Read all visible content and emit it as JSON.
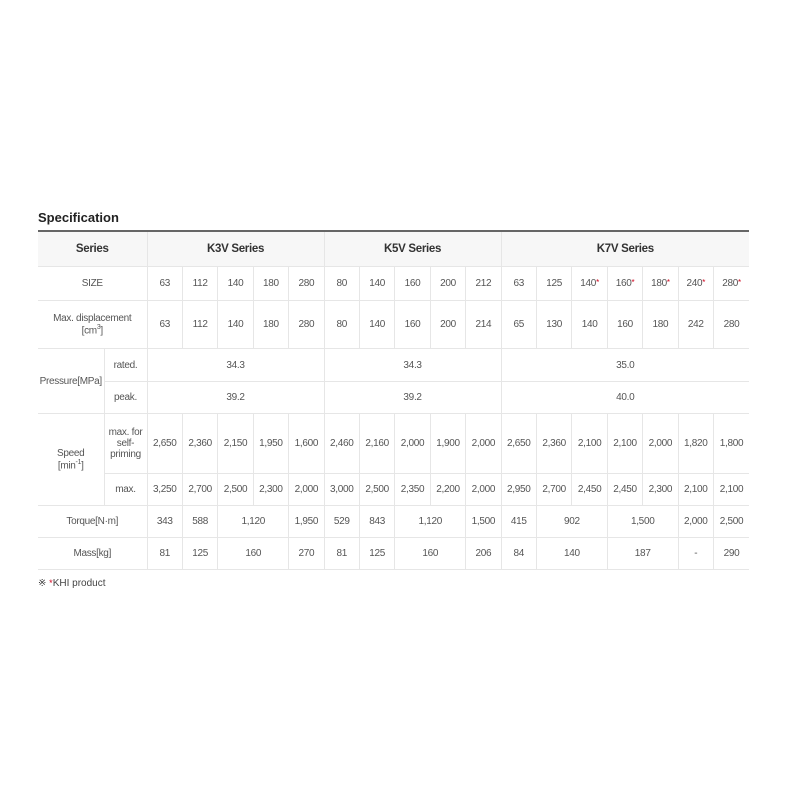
{
  "title": "Specification",
  "header": {
    "label": "Series",
    "groups": [
      {
        "label": "K3V Series",
        "span": 5
      },
      {
        "label": "K5V Series",
        "span": 5
      },
      {
        "label": "K7V Series",
        "span": 7
      }
    ]
  },
  "rows": [
    {
      "label": "SIZE",
      "height": 34,
      "cells": [
        {
          "v": "63"
        },
        {
          "v": "112"
        },
        {
          "v": "140"
        },
        {
          "v": "180"
        },
        {
          "v": "280"
        },
        {
          "v": "80"
        },
        {
          "v": "140"
        },
        {
          "v": "160"
        },
        {
          "v": "200"
        },
        {
          "v": "212"
        },
        {
          "v": "63"
        },
        {
          "v": "125"
        },
        {
          "v": "140",
          "star": true
        },
        {
          "v": "160",
          "star": true
        },
        {
          "v": "180",
          "star": true
        },
        {
          "v": "240",
          "star": true
        },
        {
          "v": "280",
          "star": true
        }
      ]
    },
    {
      "label": "Max. displacement",
      "label2": "[cm",
      "sup": "3",
      "label3": "]",
      "height": 48,
      "cells": [
        {
          "v": "63"
        },
        {
          "v": "112"
        },
        {
          "v": "140"
        },
        {
          "v": "180"
        },
        {
          "v": "280"
        },
        {
          "v": "80"
        },
        {
          "v": "140"
        },
        {
          "v": "160"
        },
        {
          "v": "200"
        },
        {
          "v": "214"
        },
        {
          "v": "65"
        },
        {
          "v": "130"
        },
        {
          "v": "140"
        },
        {
          "v": "160"
        },
        {
          "v": "180"
        },
        {
          "v": "242"
        },
        {
          "v": "280"
        }
      ]
    },
    {
      "group": "Pressure[MPa]",
      "groupRows": 2,
      "sub": "rated.",
      "height": 33,
      "cells": [
        {
          "v": "34.3",
          "span": 5
        },
        {
          "v": "34.3",
          "span": 5
        },
        {
          "v": "35.0",
          "span": 7
        }
      ]
    },
    {
      "sub": "peak.",
      "height": 32,
      "cells": [
        {
          "v": "39.2",
          "span": 5
        },
        {
          "v": "39.2",
          "span": 5
        },
        {
          "v": "40.0",
          "span": 7
        }
      ]
    },
    {
      "group": "Speed",
      "group2": "[min",
      "groupSup": "-1",
      "group3": "]",
      "groupRows": 2,
      "sub": "max. for self-priming",
      "height": 60,
      "cells": [
        {
          "v": "2,650"
        },
        {
          "v": "2,360"
        },
        {
          "v": "2,150"
        },
        {
          "v": "1,950"
        },
        {
          "v": "1,600"
        },
        {
          "v": "2,460"
        },
        {
          "v": "2,160"
        },
        {
          "v": "2,000"
        },
        {
          "v": "1,900"
        },
        {
          "v": "2,000"
        },
        {
          "v": "2,650"
        },
        {
          "v": "2,360"
        },
        {
          "v": "2,100"
        },
        {
          "v": "2,100"
        },
        {
          "v": "2,000"
        },
        {
          "v": "1,820"
        },
        {
          "v": "1,800"
        }
      ]
    },
    {
      "sub": "max.",
      "height": 32,
      "cells": [
        {
          "v": "3,250"
        },
        {
          "v": "2,700"
        },
        {
          "v": "2,500"
        },
        {
          "v": "2,300"
        },
        {
          "v": "2,000"
        },
        {
          "v": "3,000"
        },
        {
          "v": "2,500"
        },
        {
          "v": "2,350"
        },
        {
          "v": "2,200"
        },
        {
          "v": "2,000"
        },
        {
          "v": "2,950"
        },
        {
          "v": "2,700"
        },
        {
          "v": "2,450"
        },
        {
          "v": "2,450"
        },
        {
          "v": "2,300"
        },
        {
          "v": "2,100"
        },
        {
          "v": "2,100"
        }
      ]
    },
    {
      "label": "Torque[N·m]",
      "height": 32,
      "cells": [
        {
          "v": "343"
        },
        {
          "v": "588"
        },
        {
          "v": "1,120",
          "span": 2
        },
        {
          "v": "1,950"
        },
        {
          "v": "529"
        },
        {
          "v": "843"
        },
        {
          "v": "1,120",
          "span": 2
        },
        {
          "v": "1,500"
        },
        {
          "v": "415"
        },
        {
          "v": "902",
          "span": 2
        },
        {
          "v": "1,500",
          "span": 2
        },
        {
          "v": "2,000"
        },
        {
          "v": "2,500"
        }
      ]
    },
    {
      "label": "Mass[kg]",
      "height": 32,
      "cells": [
        {
          "v": "81"
        },
        {
          "v": "125"
        },
        {
          "v": "160",
          "span": 2
        },
        {
          "v": "270"
        },
        {
          "v": "81"
        },
        {
          "v": "125"
        },
        {
          "v": "160",
          "span": 2
        },
        {
          "v": "206"
        },
        {
          "v": "84"
        },
        {
          "v": "140",
          "span": 2
        },
        {
          "v": "187",
          "span": 2
        },
        {
          "v": "-"
        },
        {
          "v": "290"
        }
      ]
    }
  ],
  "note": {
    "symbol": "※",
    "star": "*",
    "text": "KHI product"
  },
  "colors": {
    "star": "#d0021b",
    "header_bg": "#f7f7f7"
  }
}
